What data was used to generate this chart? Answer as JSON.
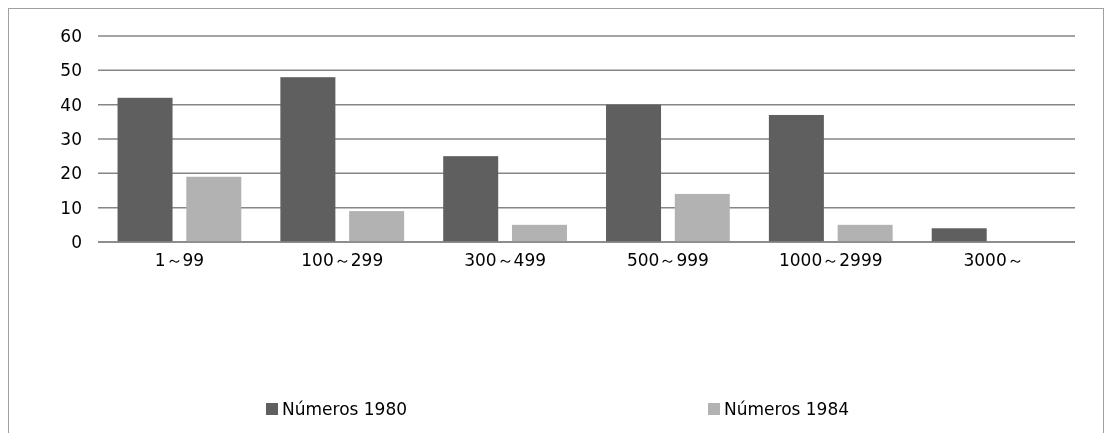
{
  "chart_data": {
    "type": "bar",
    "categories": [
      "1～99",
      "100～299",
      "300～499",
      "500～999",
      "1000～2999",
      "3000～"
    ],
    "series": [
      {
        "name": "Números 1980",
        "color": "#5f5f5f",
        "values": [
          42,
          48,
          25,
          40,
          37,
          4
        ]
      },
      {
        "name": "Números 1984",
        "color": "#b2b2b2",
        "values": [
          19,
          9,
          5,
          14,
          5,
          null
        ]
      }
    ],
    "ylim": [
      0,
      60
    ],
    "yticks": [
      0,
      10,
      20,
      30,
      40,
      50,
      60
    ],
    "grid": "y",
    "legend": "bottom"
  }
}
